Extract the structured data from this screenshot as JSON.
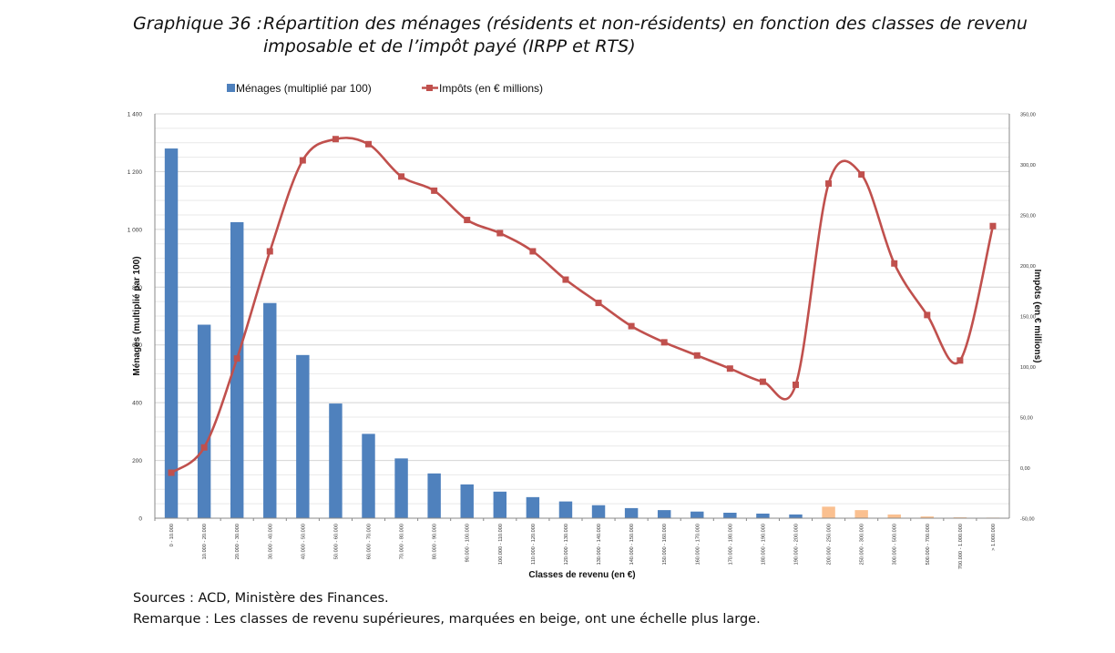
{
  "header": {
    "prefix": "Graphique 36 :",
    "line1": "Répartition des ménages (résidents et non-résidents) en fonction des classes de revenu",
    "line2": "imposable et de l’impôt payé (IRPP et RTS)"
  },
  "chart_data": {
    "type": "bar+line",
    "xlabel": "Classes de revenu (en €)",
    "ylabel_left": "Ménages (multiplié par 100)",
    "ylabel_right": "Impôts (en € millions)",
    "y_left_range": [
      0,
      1400
    ],
    "y_left_ticks": [
      "0",
      "200",
      "400",
      "600",
      "800",
      "1 000",
      "1 200",
      "1 400"
    ],
    "y_right_range": [
      -50,
      350
    ],
    "y_right_ticks": [
      "-50,00",
      "0,00",
      "50,00",
      "100,00",
      "150,00",
      "200,00",
      "250,00",
      "300,00",
      "350,00"
    ],
    "categories": [
      "0 - 10.000",
      "10.000 - 20.000",
      "20.000 - 30.000",
      "30.000 - 40.000",
      "40.000 - 50.000",
      "50.000 - 60.000",
      "60.000 - 70.000",
      "70.000 - 80.000",
      "80.000 - 90.000",
      "90.000 - 100.000",
      "100.000 - 110.000",
      "110.000 - 120.000",
      "120.000 - 130.000",
      "130.000 - 140.000",
      "140.000 - 150.000",
      "150.000 - 160.000",
      "160.000 - 170.000",
      "170.000 - 180.000",
      "180.000 - 190.000",
      "190.000 - 200.000",
      "200.000 - 250.000",
      "250.000 - 300.000",
      "300.000 - 500.000",
      "500.000 - 700.000",
      "700.000 - 1.000.000",
      "> 1.000.000"
    ],
    "series": [
      {
        "name": "Ménages  (multiplié par 100)",
        "kind": "bar",
        "axis": "left",
        "color": "#4f81bd",
        "highlight_color": "#fac090",
        "highlight_from_index": 20,
        "values": [
          1280,
          670,
          1025,
          745,
          565,
          397,
          292,
          207,
          155,
          117,
          92,
          73,
          58,
          45,
          35,
          28,
          23,
          19,
          16,
          13,
          40,
          28,
          13,
          6,
          3,
          2
        ]
      },
      {
        "name": "Impôts (en € millions)",
        "kind": "line",
        "axis": "right",
        "color": "#c0504d",
        "values": [
          -5,
          20,
          108,
          214,
          304,
          325,
          320,
          288,
          274,
          245,
          232,
          214,
          186,
          163,
          140,
          124,
          111,
          98,
          85,
          82,
          281,
          290,
          202,
          151,
          106,
          239
        ]
      }
    ]
  },
  "notes": {
    "sources": "Sources : ACD, Ministère des Finances.",
    "remark": "Remarque : Les classes de revenu supérieures, marquées en beige, ont une échelle plus large."
  }
}
